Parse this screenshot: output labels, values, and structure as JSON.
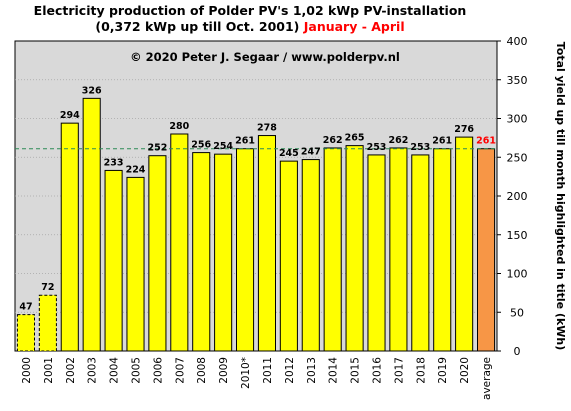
{
  "title": {
    "line1": "Electricity production  of Polder PV's 1,02 kWp PV-installation",
    "line2_main": "(0,372 kWp up till Oct. 2001)",
    "line2_highlight": "January - April"
  },
  "copyright": "© 2020 Peter J. Segaar / www.polderpv.nl",
  "colors": {
    "bar_fill": "#ffff00",
    "average_fill": "#f79646",
    "plot_bg": "#d9d9d9",
    "average_label": "#ff0000",
    "reference_line": "#2e8b57"
  },
  "chart_data": {
    "type": "bar",
    "title": "Electricity production  of Polder PV's 1,02 kWp PV-installation (0,372 kWp up till Oct. 2001) January - April",
    "ylabel": "Total yield up till month highlighted in title (kWh)",
    "xlabel": "",
    "ylim": [
      0,
      400
    ],
    "yticks": [
      0,
      50,
      100,
      150,
      200,
      250,
      300,
      350,
      400
    ],
    "grid": "horizontal",
    "categories": [
      "2000",
      "2001",
      "2002",
      "2003",
      "2004",
      "2005",
      "2006",
      "2007",
      "2008",
      "2009",
      "2010*",
      "2011",
      "2012",
      "2013",
      "2014",
      "2015",
      "2016",
      "2017",
      "2018",
      "2019",
      "2020",
      "average"
    ],
    "values": [
      47,
      72,
      294,
      326,
      233,
      224,
      252,
      280,
      256,
      254,
      261,
      278,
      245,
      247,
      262,
      265,
      253,
      262,
      253,
      261,
      276,
      261
    ],
    "dashed_outline": [
      "2000",
      "2001"
    ],
    "reference_line_value": 261
  }
}
